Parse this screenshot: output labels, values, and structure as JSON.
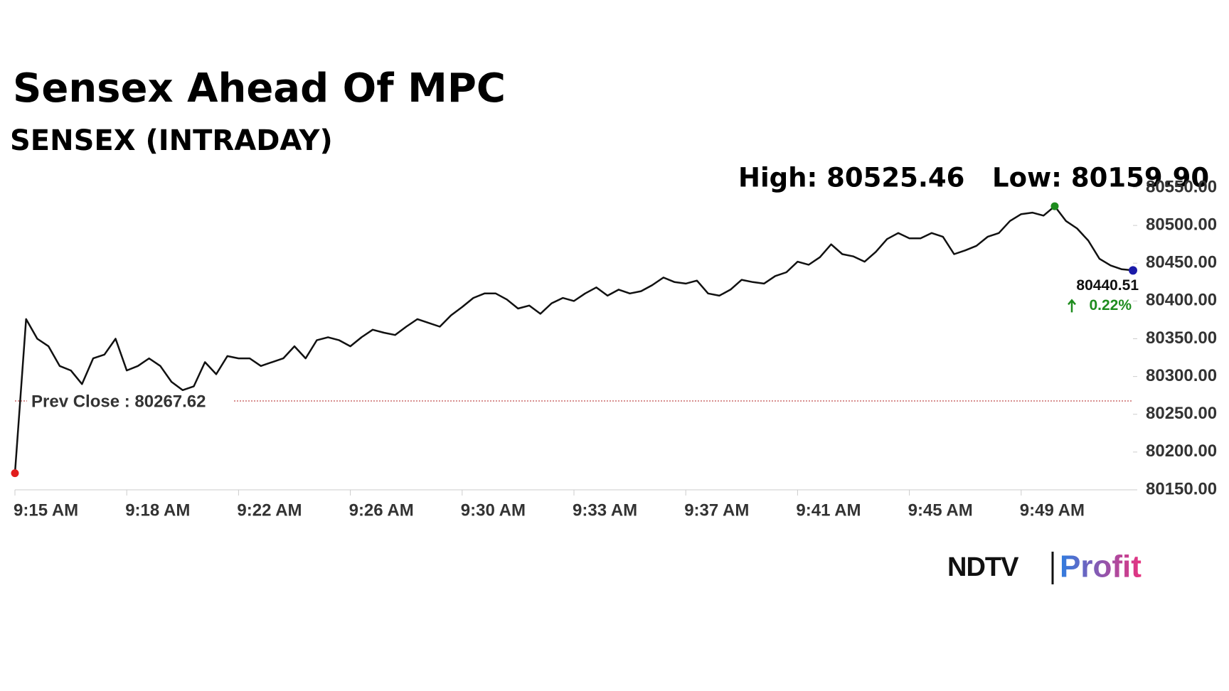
{
  "chart_data": {
    "type": "line",
    "title": "Sensex Ahead Of MPC",
    "subtitle": "SENSEX (INTRADAY)",
    "high_label": "High: 80525.46",
    "low_label": "Low: 80159.90",
    "prev_close": 80267.62,
    "prev_close_label": "Prev Close : 80267.62",
    "last_label": "80440.51",
    "change_label": "0.22%",
    "categories": [
      "9:15 AM",
      null,
      null,
      null,
      null,
      null,
      null,
      null,
      null,
      null,
      "9:18 AM",
      null,
      null,
      null,
      null,
      null,
      null,
      null,
      null,
      null,
      "9:22 AM",
      null,
      null,
      null,
      null,
      null,
      null,
      null,
      null,
      null,
      "9:26 AM",
      null,
      null,
      null,
      null,
      null,
      null,
      null,
      null,
      null,
      "9:30 AM",
      null,
      null,
      null,
      null,
      null,
      null,
      null,
      null,
      null,
      "9:33 AM",
      null,
      null,
      null,
      null,
      null,
      null,
      null,
      null,
      null,
      "9:37 AM",
      null,
      null,
      null,
      null,
      null,
      null,
      null,
      null,
      null,
      "9:41 AM",
      null,
      null,
      null,
      null,
      null,
      null,
      null,
      null,
      null,
      "9:45 AM",
      null,
      null,
      null,
      null,
      null,
      null,
      null,
      null,
      null,
      "9:49 AM",
      null,
      null,
      null,
      null,
      null,
      null,
      null,
      null,
      null,
      null
    ],
    "series": [
      {
        "name": "SENSEX",
        "color": "#111111",
        "values": [
          80172,
          80376,
          80350,
          80340,
          80314,
          80308,
          80290,
          80324,
          80329,
          80350,
          80308,
          80314,
          80324,
          80314,
          80293,
          80282,
          80287,
          80319,
          80303,
          80327,
          80324,
          80324,
          80314,
          80319,
          80324,
          80340,
          80324,
          80348,
          80352,
          80348,
          80340,
          80352,
          80362,
          80358,
          80355,
          80366,
          80376,
          80371,
          80366,
          80381,
          80392,
          80404,
          80410,
          80410,
          80402,
          80390,
          80394,
          80383,
          80397,
          80404,
          80400,
          80410,
          80418,
          80407,
          80415,
          80410,
          80413,
          80421,
          80431,
          80425,
          80423,
          80427,
          80410,
          80407,
          80415,
          80428,
          80425,
          80423,
          80433,
          80438,
          80452,
          80448,
          80458,
          80475,
          80462,
          80459,
          80452,
          80465,
          80482,
          80490,
          80483,
          80483,
          80490,
          80485,
          80462,
          80467,
          80473,
          80485,
          80490,
          80506,
          80515,
          80517,
          80513,
          80525.46,
          80506,
          80496,
          80480,
          80456,
          80447,
          80442,
          80440.51
        ]
      }
    ],
    "ylim": [
      80150,
      80550
    ],
    "yticks": [
      {
        "value": 80150,
        "label": "80150.00"
      },
      {
        "value": 80200,
        "label": "80200.00"
      },
      {
        "value": 80250,
        "label": "80250.00"
      },
      {
        "value": 80300,
        "label": "80300.00"
      },
      {
        "value": 80350,
        "label": "80350.00"
      },
      {
        "value": 80400,
        "label": "80400.00"
      },
      {
        "value": 80450,
        "label": "80450.00"
      },
      {
        "value": 80500,
        "label": "80500.00"
      },
      {
        "value": 80550,
        "label": "80550.00"
      }
    ],
    "prev_close_color": "#b22222",
    "start_color": "#e11d1d",
    "high_color": "#1e8c1e",
    "last_color": "#1a1aa8",
    "change_color": "#1e8c1e"
  },
  "logo": {
    "left": "NDTV",
    "right": "Profit"
  }
}
